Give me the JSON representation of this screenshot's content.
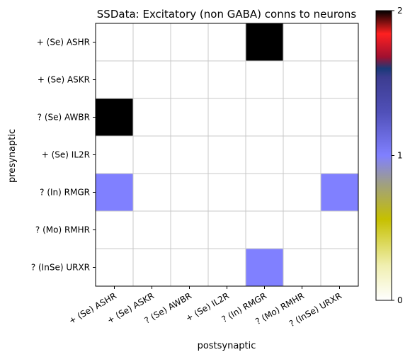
{
  "chart_data": {
    "type": "heatmap",
    "title": "SSData: Excitatory (non GABA) conns to neurons",
    "xlabel": "postsynaptic",
    "ylabel": "presynaptic",
    "x_categories": [
      "+ (Se) ASHR",
      "+ (Se) ASKR",
      "? (Se) AWBR",
      "+ (Se) IL2R",
      "? (In) RMGR",
      "? (Mo) RMHR",
      "? (InSe) URXR"
    ],
    "y_categories": [
      "+ (Se) ASHR",
      "+ (Se) ASKR",
      "? (Se) AWBR",
      "+ (Se) IL2R",
      "? (In) RMGR",
      "? (Mo) RMHR",
      "? (InSe) URXR"
    ],
    "values": [
      [
        0,
        0,
        0,
        0,
        2,
        0,
        0
      ],
      [
        0,
        0,
        0,
        0,
        0,
        0,
        0
      ],
      [
        2,
        0,
        0,
        0,
        0,
        0,
        0
      ],
      [
        0,
        0,
        0,
        0,
        0,
        0,
        0
      ],
      [
        1,
        0,
        0,
        0,
        0,
        0,
        1
      ],
      [
        0,
        0,
        0,
        0,
        0,
        0,
        0
      ],
      [
        0,
        0,
        0,
        0,
        1,
        0,
        0
      ]
    ],
    "zlim": [
      0,
      2
    ],
    "colorbar": {
      "ticks": [
        0,
        1,
        2
      ]
    },
    "colors": {
      "zero": "#ffffff",
      "one": "#8080ff",
      "two": "#000000",
      "grid": "#c8c8c8"
    },
    "grid": true
  }
}
